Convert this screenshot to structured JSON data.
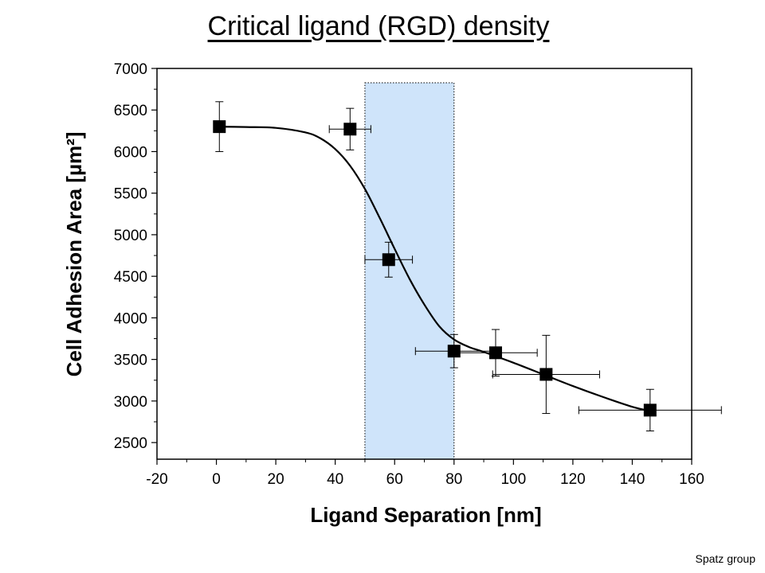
{
  "slide": {
    "title": "Critical ligand (RGD) density",
    "credit": "Spatz group"
  },
  "chart_data": {
    "type": "scatter",
    "title": "",
    "xlabel": "Ligand Separation [nm]",
    "ylabel": "Cell Adhesion Area [µm²]",
    "xlim": [
      -20,
      160
    ],
    "ylim": [
      2300,
      7000
    ],
    "xticks": [
      -20,
      0,
      20,
      40,
      60,
      80,
      100,
      120,
      140,
      160
    ],
    "yticks": [
      2500,
      3000,
      3500,
      4000,
      4500,
      5000,
      5500,
      6000,
      6500,
      7000
    ],
    "grid": false,
    "points": [
      {
        "x": 1,
        "y": 6300,
        "yerr": 300,
        "xerr": 0
      },
      {
        "x": 45,
        "y": 6270,
        "yerr": 250,
        "xerr": 7
      },
      {
        "x": 58,
        "y": 4700,
        "yerr": 210,
        "xerr": 8
      },
      {
        "x": 80,
        "y": 3600,
        "yerr": 200,
        "xerr": 13
      },
      {
        "x": 94,
        "y": 3580,
        "yerr": 280,
        "xerr": 14
      },
      {
        "x": 111,
        "y": 3320,
        "yerr": 470,
        "xerr": 18
      },
      {
        "x": 146,
        "y": 2890,
        "yerr": 250,
        "xerr": 24
      }
    ],
    "fit_curve": {
      "x": [
        -0.5,
        10,
        20,
        30,
        35,
        40,
        45,
        50,
        55,
        60,
        65,
        70,
        75,
        80,
        85,
        90,
        100,
        110,
        120,
        130,
        140,
        146
      ],
      "y": [
        6300,
        6295,
        6285,
        6230,
        6160,
        6030,
        5830,
        5550,
        5200,
        4830,
        4470,
        4160,
        3900,
        3740,
        3650,
        3590,
        3460,
        3320,
        3180,
        3050,
        2930,
        2880
      ]
    },
    "highlight_region": {
      "x": [
        50,
        80
      ],
      "color": "#cfe4fa"
    },
    "colors": {
      "marker": "#000000",
      "curve": "#000000"
    }
  }
}
